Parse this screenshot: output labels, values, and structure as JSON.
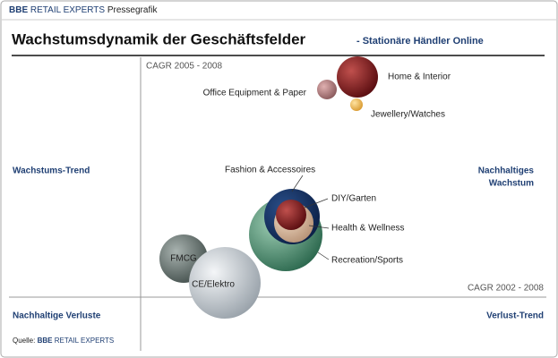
{
  "header": {
    "brand": "BBE",
    "brand_rest": "RETAIL EXPERTS",
    "tag": "Pressegrafik",
    "title": "Wachstumsdynamik der Geschäftsfelder",
    "subtitle": "- Stationäre Händler Online"
  },
  "axes": {
    "y_label": "CAGR 2005 - 2008",
    "x_label": "CAGR 2002 - 2008"
  },
  "quadrants": {
    "top_left": "Wachstums-Trend",
    "top_right_1": "Nachhaltiges",
    "top_right_2": "Wachstum",
    "bottom_left": "Nachhaltige Verluste",
    "bottom_right": "Verlust-Trend"
  },
  "bubbles": [
    "Home & Interior",
    "Office Equipment & Paper",
    "Jewellery/Watches",
    "Fashion & Accessoires",
    "DIY/Garten",
    "Health & Wellness",
    "Recreation/Sports",
    "FMCG",
    "CE/Elektro"
  ],
  "source": {
    "prefix": "Quelle:",
    "brand": "BBE",
    "rest": "RETAIL EXPERTS"
  }
}
